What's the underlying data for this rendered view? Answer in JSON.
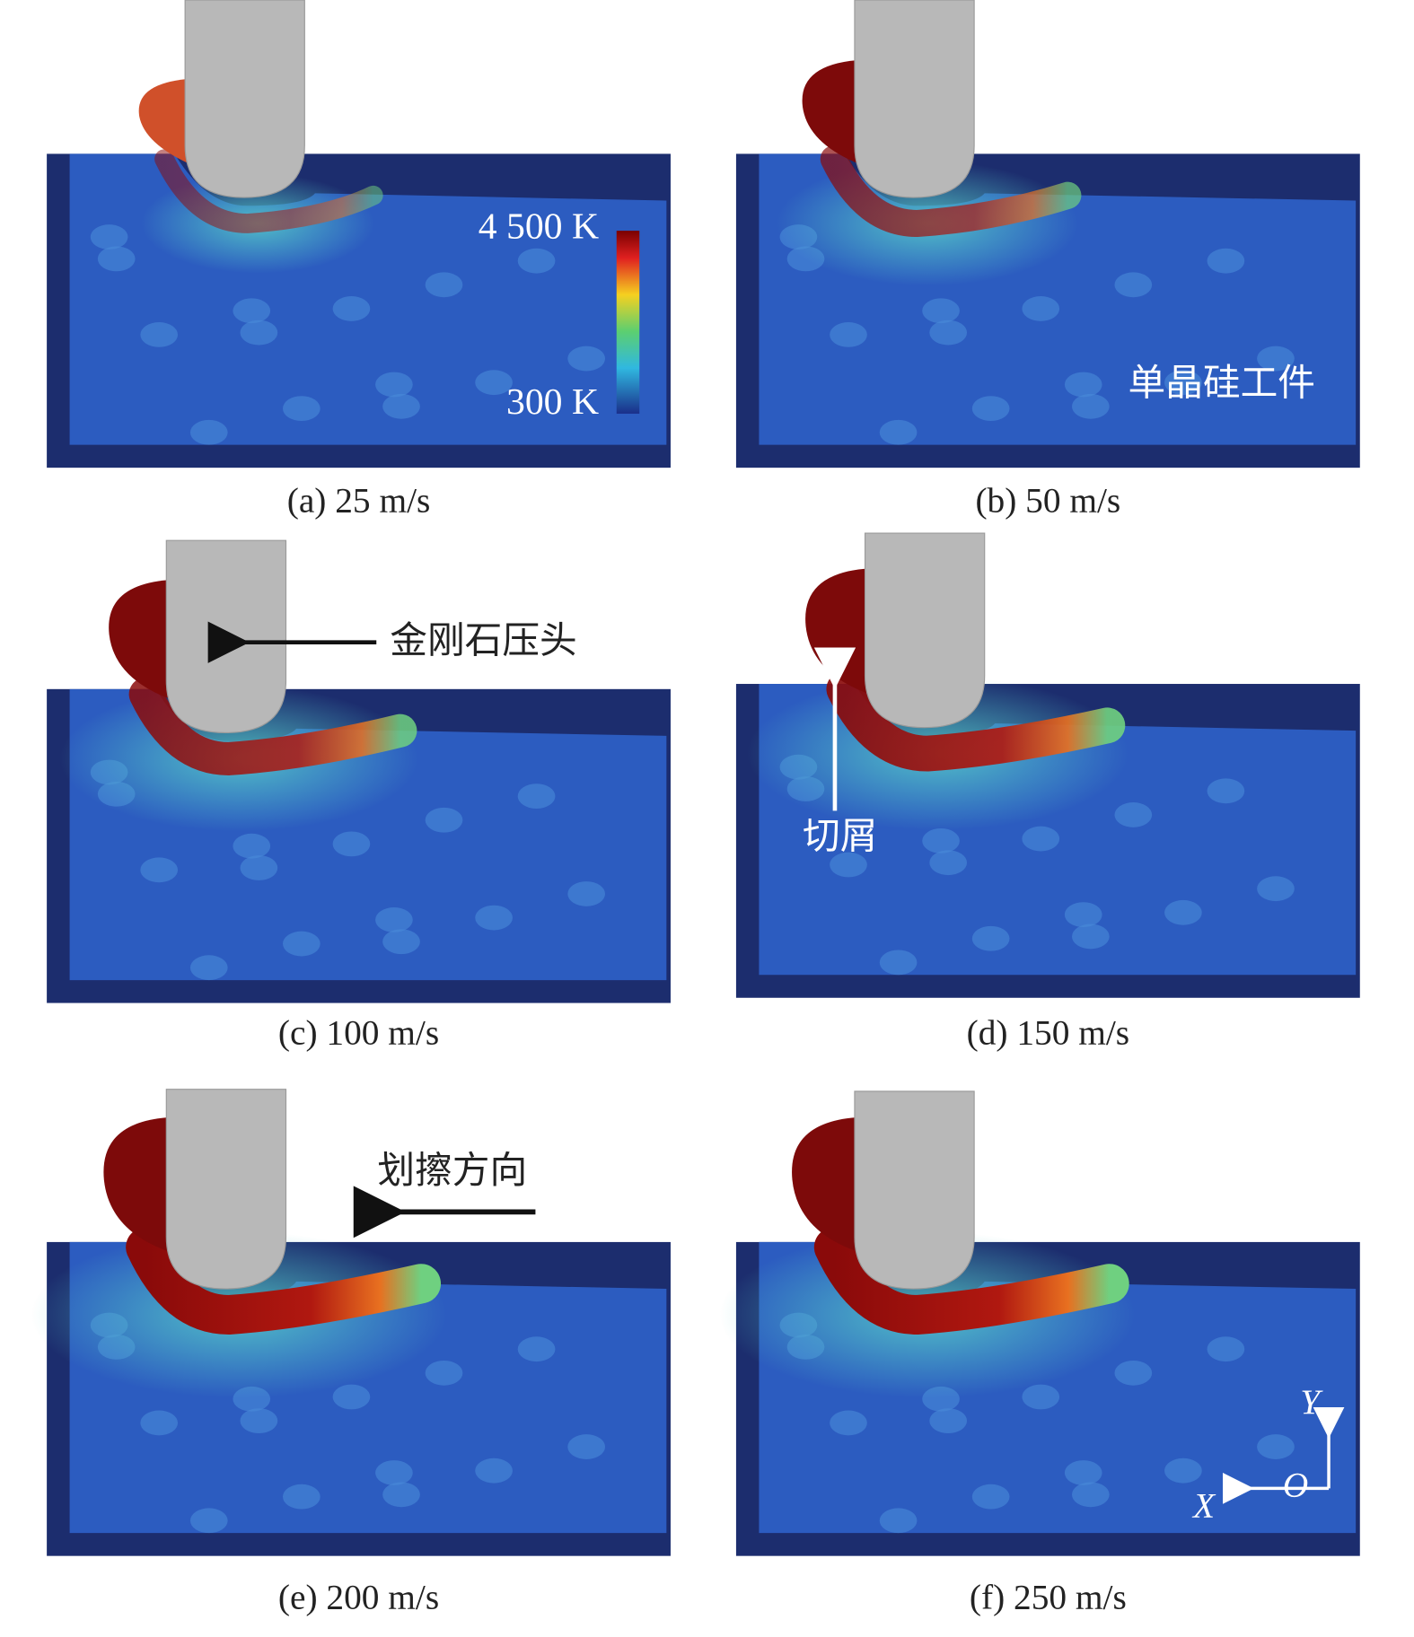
{
  "panels": [
    {
      "caption": "(a) 25 m/s"
    },
    {
      "caption": "(b) 50 m/s"
    },
    {
      "caption": "(c) 100 m/s"
    },
    {
      "caption": "(d) 150 m/s"
    },
    {
      "caption": "(e) 200 m/s"
    },
    {
      "caption": "(f) 250 m/s"
    }
  ],
  "colorbar": {
    "max_label": "4 500 K",
    "min_label": "300 K"
  },
  "annotations": {
    "workpiece": "单晶硅工件",
    "indenter": "金刚石压头",
    "chip": "切屑",
    "scratch_direction": "划擦方向"
  },
  "axes": {
    "y": "Y",
    "origin": "O",
    "x": "X"
  }
}
